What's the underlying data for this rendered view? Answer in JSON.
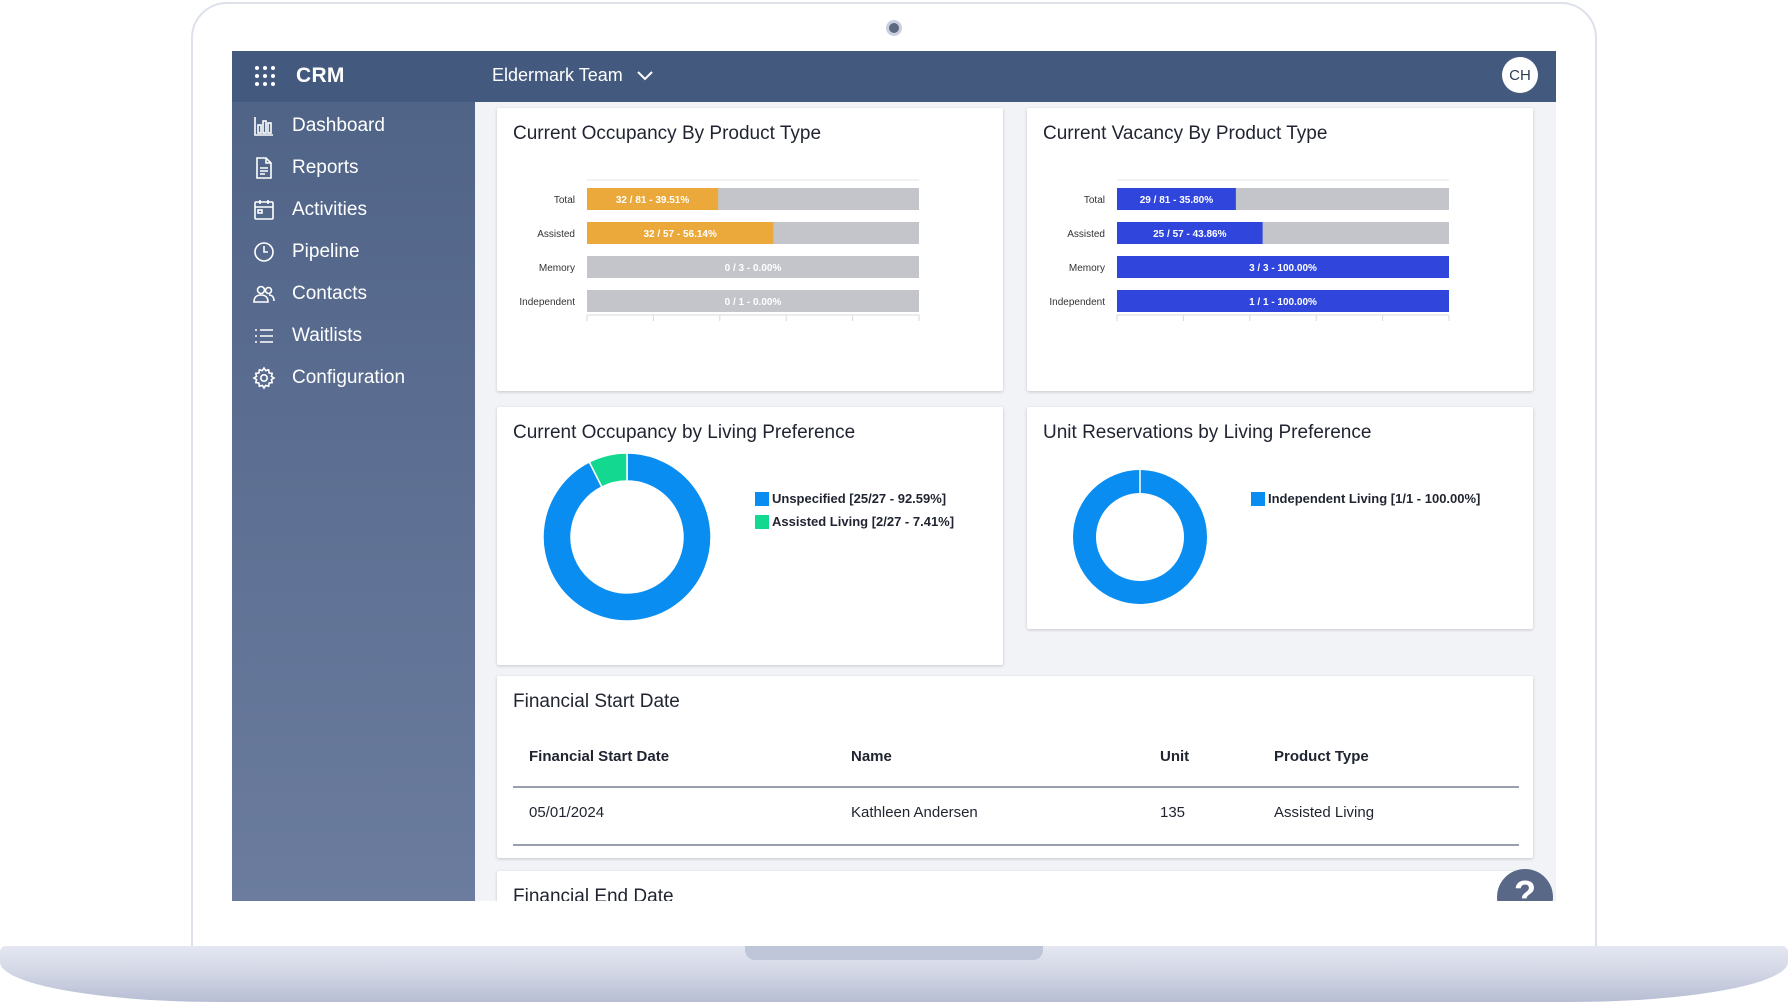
{
  "app": {
    "name": "CRM",
    "team": "Eldermark Team",
    "avatar_initials": "CH"
  },
  "sidebar": {
    "items": [
      {
        "label": "Dashboard",
        "icon": "bar-chart-icon"
      },
      {
        "label": "Reports",
        "icon": "document-icon"
      },
      {
        "label": "Activities",
        "icon": "calendar-icon"
      },
      {
        "label": "Pipeline",
        "icon": "clock-icon"
      },
      {
        "label": "Contacts",
        "icon": "people-icon"
      },
      {
        "label": "Waitlists",
        "icon": "list-icon"
      },
      {
        "label": "Configuration",
        "icon": "gear-icon"
      }
    ]
  },
  "cards": {
    "occupancy_product": {
      "title": "Current Occupancy By Product Type"
    },
    "vacancy_product": {
      "title": "Current Vacancy By Product Type"
    },
    "occupancy_living": {
      "title": "Current Occupancy by Living Preference"
    },
    "reservations_living": {
      "title": "Unit Reservations by Living Preference"
    },
    "financial_start": {
      "title": "Financial Start Date",
      "columns": [
        "Financial Start Date",
        "Name",
        "Unit",
        "Product Type"
      ],
      "rows": [
        [
          "05/01/2024",
          "Kathleen Andersen",
          "135",
          "Assisted Living"
        ]
      ]
    },
    "financial_end": {
      "title": "Financial End Date"
    }
  },
  "help": {
    "label": "?"
  },
  "colors": {
    "topbar": "#43597e",
    "occupancy_bar": "#eba93b",
    "vacancy_bar": "#2f45dc",
    "remainder_bar": "#c4c5ca",
    "donut_primary": "#0a8df0",
    "donut_secondary": "#12d98f"
  },
  "chart_data": [
    {
      "type": "bar",
      "orientation": "horizontal",
      "stacked": true,
      "categories": [
        "Total",
        "Assisted",
        "Memory",
        "Independent"
      ],
      "values": [
        32,
        32,
        0,
        0
      ],
      "totals": [
        81,
        57,
        3,
        1
      ],
      "data_labels": [
        "32 / 81 - 39.51%",
        "32 / 57 - 56.14%",
        "0 / 3 - 0.00%",
        "0 / 1 - 0.00%"
      ],
      "color": "#eba93b"
    },
    {
      "type": "bar",
      "orientation": "horizontal",
      "stacked": true,
      "categories": [
        "Total",
        "Assisted",
        "Memory",
        "Independent"
      ],
      "values": [
        29,
        25,
        3,
        1
      ],
      "totals": [
        81,
        57,
        3,
        1
      ],
      "data_labels": [
        "29 / 81 - 35.80%",
        "25 / 57 - 43.86%",
        "3 / 3 - 100.00%",
        "1 / 1 - 100.00%"
      ],
      "color": "#2f45dc"
    },
    {
      "type": "pie",
      "donut": true,
      "legend_position": "right",
      "slices": [
        {
          "label": "Unspecified [25/27 - 92.59%]",
          "value": 25,
          "color": "#0a8df0"
        },
        {
          "label": "Assisted Living [2/27 - 7.41%]",
          "value": 2,
          "color": "#12d98f"
        }
      ]
    },
    {
      "type": "pie",
      "donut": true,
      "legend_position": "right",
      "slices": [
        {
          "label": "Independent Living [1/1 - 100.00%]",
          "value": 1,
          "color": "#0a8df0"
        }
      ]
    }
  ]
}
